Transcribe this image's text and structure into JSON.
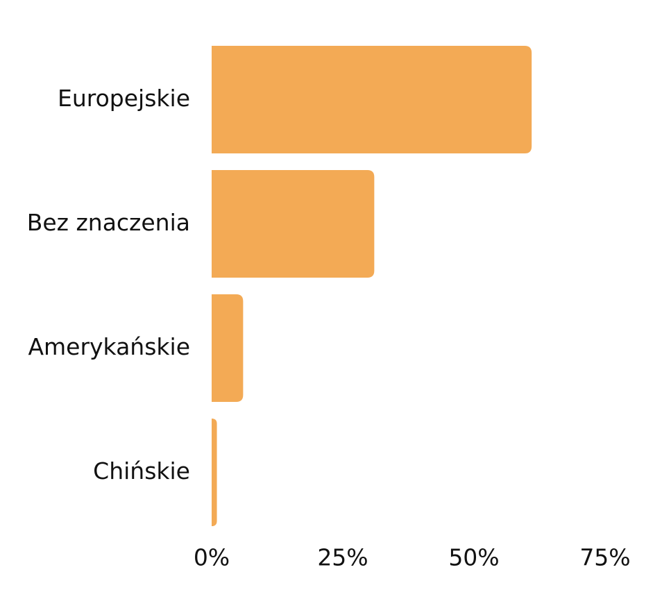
{
  "chart_data": {
    "type": "bar",
    "orientation": "horizontal",
    "categories": [
      "Europejskie",
      "Bez znaczenia",
      "Amerykańskie",
      "Chińskie"
    ],
    "values": [
      61,
      31,
      6,
      1
    ],
    "color": "#f3aa55",
    "xlim": [
      0,
      75
    ],
    "xticks": [
      {
        "value": 0,
        "label": "0%"
      },
      {
        "value": 25,
        "label": "25%"
      },
      {
        "value": 50,
        "label": "50%"
      },
      {
        "value": 75,
        "label": "75%"
      }
    ],
    "grid": false
  }
}
